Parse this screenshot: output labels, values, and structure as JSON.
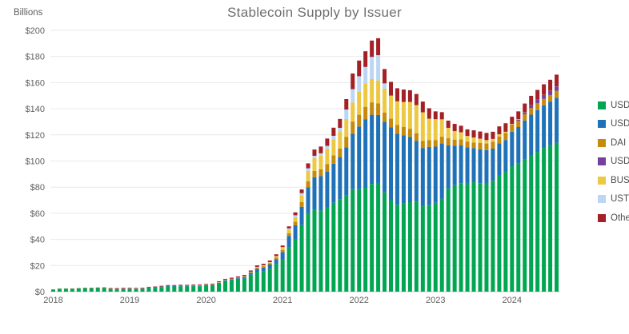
{
  "chart": {
    "title": "Stablecoin Supply by Issuer",
    "y_axis_unit": "Billions"
  },
  "legend": {
    "items": [
      {
        "label": "USDT",
        "color": "#00A651"
      },
      {
        "label": "USDC",
        "color": "#2072B8"
      },
      {
        "label": "DAI",
        "color": "#C68A0C"
      },
      {
        "label": "USDe",
        "color": "#7340A0"
      },
      {
        "label": "BUSD",
        "color": "#EDC843"
      },
      {
        "label": "UST",
        "color": "#BCD7F5"
      },
      {
        "label": "Other",
        "color": "#A32026"
      }
    ]
  },
  "chart_data": {
    "type": "bar",
    "stacked": true,
    "title": "Stablecoin Supply by Issuer",
    "xlabel": "",
    "ylabel": "Billions",
    "unit": "USD billions",
    "ylim": [
      0,
      200
    ],
    "y_tick_step": 20,
    "y_tick_labels": [
      "$0",
      "$20",
      "$40",
      "$60",
      "$80",
      "$100",
      "$120",
      "$140",
      "$160",
      "$180",
      "$200"
    ],
    "x_tick_labels": [
      "2018",
      "2019",
      "2020",
      "2021",
      "2022",
      "2023",
      "2024"
    ],
    "grid": true,
    "legend_position": "right",
    "x": [
      "2018-01",
      "2018-02",
      "2018-03",
      "2018-04",
      "2018-05",
      "2018-06",
      "2018-07",
      "2018-08",
      "2018-09",
      "2018-10",
      "2018-11",
      "2018-12",
      "2019-01",
      "2019-02",
      "2019-03",
      "2019-04",
      "2019-05",
      "2019-06",
      "2019-07",
      "2019-08",
      "2019-09",
      "2019-10",
      "2019-11",
      "2019-12",
      "2020-01",
      "2020-02",
      "2020-03",
      "2020-04",
      "2020-05",
      "2020-06",
      "2020-07",
      "2020-08",
      "2020-09",
      "2020-10",
      "2020-11",
      "2020-12",
      "2021-01",
      "2021-02",
      "2021-03",
      "2021-04",
      "2021-05",
      "2021-06",
      "2021-07",
      "2021-08",
      "2021-09",
      "2021-10",
      "2021-11",
      "2021-12",
      "2022-01",
      "2022-02",
      "2022-03",
      "2022-04",
      "2022-05",
      "2022-06",
      "2022-07",
      "2022-08",
      "2022-09",
      "2022-10",
      "2022-11",
      "2022-12",
      "2023-01",
      "2023-02",
      "2023-03",
      "2023-04",
      "2023-05",
      "2023-06",
      "2023-07",
      "2023-08",
      "2023-09",
      "2023-10",
      "2023-11",
      "2023-12",
      "2024-01",
      "2024-02",
      "2024-03",
      "2024-04",
      "2024-05",
      "2024-06",
      "2024-07",
      "2024-08"
    ],
    "series": [
      {
        "name": "USDT",
        "color": "#00A651",
        "values": [
          1.6,
          2.2,
          2.3,
          2.3,
          2.5,
          2.7,
          2.7,
          2.8,
          2.8,
          2.0,
          1.8,
          1.9,
          2.0,
          2.0,
          2.1,
          2.8,
          3.0,
          3.5,
          4.0,
          4.0,
          4.1,
          4.1,
          4.2,
          4.1,
          4.6,
          4.6,
          6.2,
          8.0,
          8.8,
          9.2,
          10.0,
          13.0,
          15.0,
          15.7,
          17.5,
          21.0,
          24.4,
          34.0,
          40.0,
          51.0,
          60.0,
          62.6,
          62.0,
          64.5,
          68.0,
          70.5,
          73.5,
          78.4,
          78.4,
          79.5,
          82.4,
          83.2,
          76.0,
          70.0,
          66.5,
          67.5,
          68.5,
          69.0,
          65.5,
          66.2,
          68.0,
          71.0,
          79.0,
          81.5,
          83.0,
          83.2,
          83.8,
          83.0,
          83.2,
          84.9,
          89.0,
          91.7,
          96.0,
          98.0,
          101.0,
          104.0,
          107.0,
          110.0,
          112.0,
          114.0
        ]
      },
      {
        "name": "USDC",
        "color": "#2072B8",
        "values": [
          0,
          0,
          0,
          0,
          0,
          0,
          0,
          0,
          0,
          0.1,
          0.2,
          0.3,
          0.35,
          0.25,
          0.25,
          0.3,
          0.35,
          0.4,
          0.45,
          0.45,
          0.5,
          0.45,
          0.5,
          0.5,
          0.5,
          0.6,
          0.7,
          0.7,
          0.7,
          1.1,
          1.1,
          1.4,
          2.5,
          2.8,
          3.3,
          3.9,
          5.8,
          8.7,
          10.8,
          14.0,
          20.0,
          24.9,
          26.4,
          27.4,
          30.0,
          32.5,
          37.0,
          42.4,
          48.0,
          52.5,
          53.0,
          52.0,
          54.0,
          55.9,
          54.3,
          52.2,
          50.0,
          46.5,
          44.5,
          44.6,
          43.0,
          42.4,
          33.0,
          30.2,
          28.9,
          27.3,
          26.1,
          26.0,
          25.2,
          24.6,
          24.6,
          24.4,
          26.5,
          28.0,
          30.0,
          31.5,
          32.0,
          32.5,
          33.5,
          34.5
        ]
      },
      {
        "name": "DAI",
        "color": "#C68A0C",
        "values": [
          0.05,
          0.05,
          0.05,
          0.06,
          0.06,
          0.07,
          0.07,
          0.08,
          0.08,
          0.09,
          0.1,
          0.1,
          0.1,
          0.1,
          0.1,
          0.1,
          0.1,
          0.1,
          0.1,
          0.1,
          0.1,
          0.1,
          0.1,
          0.1,
          0.1,
          0.1,
          0.1,
          0.1,
          0.1,
          0.15,
          0.3,
          0.4,
          0.9,
          1.0,
          1.0,
          1.1,
          1.6,
          2.1,
          2.7,
          3.5,
          4.4,
          4.9,
          5.3,
          5.8,
          6.3,
          6.6,
          8.0,
          9.4,
          9.0,
          9.5,
          9.5,
          9.0,
          7.0,
          6.5,
          6.9,
          6.5,
          6.2,
          5.8,
          5.3,
          5.1,
          5.1,
          5.2,
          5.4,
          4.7,
          4.6,
          4.4,
          4.2,
          4.8,
          5.0,
          5.2,
          5.2,
          5.3,
          5.0,
          4.9,
          4.8,
          5.0,
          5.2,
          5.1,
          5.0,
          5.3
        ]
      },
      {
        "name": "USDe",
        "color": "#7340A0",
        "values": [
          0,
          0,
          0,
          0,
          0,
          0,
          0,
          0,
          0,
          0,
          0,
          0,
          0,
          0,
          0,
          0,
          0,
          0,
          0,
          0,
          0,
          0,
          0,
          0,
          0,
          0,
          0,
          0,
          0,
          0,
          0,
          0,
          0,
          0,
          0,
          0,
          0,
          0,
          0,
          0,
          0,
          0,
          0,
          0,
          0,
          0,
          0,
          0,
          0,
          0,
          0,
          0,
          0,
          0,
          0,
          0,
          0,
          0,
          0,
          0,
          0,
          0,
          0,
          0,
          0,
          0,
          0,
          0,
          0,
          0,
          0,
          0,
          0.3,
          0.7,
          1.5,
          2.3,
          2.6,
          3.0,
          3.1,
          3.2
        ]
      },
      {
        "name": "BUSD",
        "color": "#EDC843",
        "values": [
          0,
          0,
          0,
          0,
          0,
          0,
          0,
          0,
          0,
          0,
          0,
          0,
          0,
          0,
          0,
          0,
          0,
          0,
          0,
          0,
          0.02,
          0.05,
          0.1,
          0.2,
          0.2,
          0.3,
          0.3,
          0.3,
          0.3,
          0.3,
          0.4,
          0.4,
          0.5,
          0.6,
          0.7,
          1.0,
          1.8,
          2.6,
          3.4,
          5.0,
          8.0,
          9.7,
          10.3,
          11.6,
          12.3,
          13.0,
          13.6,
          14.6,
          17.5,
          18.0,
          17.8,
          17.5,
          18.4,
          17.7,
          18.0,
          19.0,
          20.5,
          21.5,
          22.0,
          16.5,
          15.9,
          13.3,
          8.0,
          6.5,
          5.5,
          4.3,
          3.9,
          3.3,
          2.6,
          2.2,
          1.7,
          1.0,
          0.6,
          0.4,
          0.2,
          0.1,
          0.1,
          0.1,
          0.1,
          0.1
        ]
      },
      {
        "name": "UST",
        "color": "#BCD7F5",
        "values": [
          0,
          0,
          0,
          0,
          0,
          0,
          0,
          0,
          0,
          0,
          0,
          0,
          0,
          0,
          0,
          0,
          0,
          0,
          0,
          0,
          0,
          0,
          0,
          0,
          0,
          0,
          0,
          0,
          0,
          0,
          0,
          0,
          0.1,
          0.1,
          0.1,
          0.2,
          0.5,
          1.0,
          1.6,
          1.9,
          2.0,
          1.9,
          1.9,
          2.3,
          2.7,
          2.8,
          7.3,
          10.2,
          12.0,
          12.5,
          17.0,
          19.3,
          4.0,
          0,
          0,
          0,
          0,
          0,
          0,
          0,
          0,
          0,
          0,
          0,
          0,
          0,
          0,
          0,
          0,
          0,
          0,
          0,
          0,
          0,
          0,
          0,
          0,
          0,
          0,
          0
        ]
      },
      {
        "name": "Other",
        "color": "#A32026",
        "values": [
          0.1,
          0.1,
          0.1,
          0.1,
          0.15,
          0.2,
          0.2,
          0.3,
          0.4,
          0.55,
          0.6,
          0.6,
          0.5,
          0.5,
          0.5,
          0.5,
          0.5,
          0.5,
          0.5,
          0.5,
          0.5,
          0.5,
          0.5,
          0.5,
          0.5,
          0.5,
          0.6,
          0.7,
          0.8,
          0.9,
          1.0,
          1.0,
          1.1,
          1.1,
          1.2,
          1.4,
          1.2,
          1.6,
          2.2,
          2.8,
          3.8,
          4.8,
          5.2,
          5.6,
          6.2,
          6.8,
          8.0,
          12.0,
          12.0,
          12.0,
          12.5,
          13.0,
          11.0,
          10.5,
          10.0,
          9.5,
          9.0,
          8.5,
          8.2,
          8.0,
          6.0,
          5.5,
          5.5,
          5.5,
          5.0,
          5.0,
          5.5,
          5.5,
          5.5,
          5.5,
          6.0,
          6.5,
          5.5,
          6.0,
          6.5,
          7.0,
          7.5,
          8.0,
          8.5,
          9.0
        ]
      }
    ]
  }
}
